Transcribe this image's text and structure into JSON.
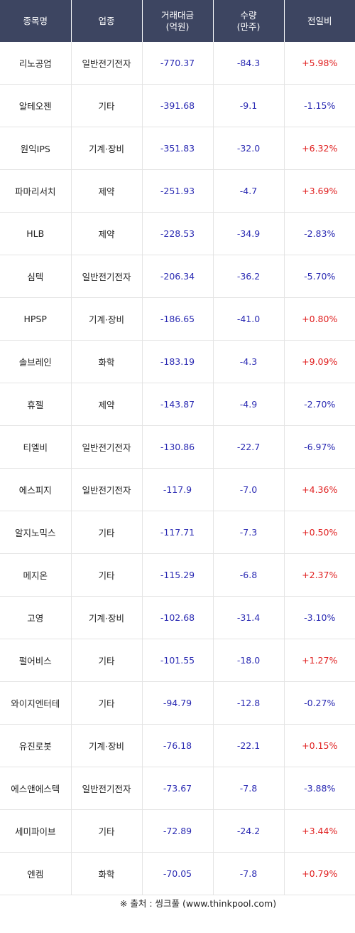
{
  "header": {
    "name": "종목명",
    "sector": "업종",
    "amount_line1": "거래대금",
    "amount_line2": "(억원)",
    "volume_line1": "수량",
    "volume_line2": "(만주)",
    "change": "전일비"
  },
  "rows": [
    {
      "name": "리노공업",
      "sector": "일반전기전자",
      "amount": "-770.37",
      "volume": "-84.3",
      "change": "+5.98%",
      "dir": "up"
    },
    {
      "name": "알테오젠",
      "sector": "기타",
      "amount": "-391.68",
      "volume": "-9.1",
      "change": "-1.15%",
      "dir": "down"
    },
    {
      "name": "원익IPS",
      "sector": "기계·장비",
      "amount": "-351.83",
      "volume": "-32.0",
      "change": "+6.32%",
      "dir": "up"
    },
    {
      "name": "파마리서치",
      "sector": "제약",
      "amount": "-251.93",
      "volume": "-4.7",
      "change": "+3.69%",
      "dir": "up"
    },
    {
      "name": "HLB",
      "sector": "제약",
      "amount": "-228.53",
      "volume": "-34.9",
      "change": "-2.83%",
      "dir": "down"
    },
    {
      "name": "심텍",
      "sector": "일반전기전자",
      "amount": "-206.34",
      "volume": "-36.2",
      "change": "-5.70%",
      "dir": "down"
    },
    {
      "name": "HPSP",
      "sector": "기계·장비",
      "amount": "-186.65",
      "volume": "-41.0",
      "change": "+0.80%",
      "dir": "up"
    },
    {
      "name": "솔브레인",
      "sector": "화학",
      "amount": "-183.19",
      "volume": "-4.3",
      "change": "+9.09%",
      "dir": "up"
    },
    {
      "name": "휴젤",
      "sector": "제약",
      "amount": "-143.87",
      "volume": "-4.9",
      "change": "-2.70%",
      "dir": "down"
    },
    {
      "name": "티엘비",
      "sector": "일반전기전자",
      "amount": "-130.86",
      "volume": "-22.7",
      "change": "-6.97%",
      "dir": "down"
    },
    {
      "name": "에스피지",
      "sector": "일반전기전자",
      "amount": "-117.9",
      "volume": "-7.0",
      "change": "+4.36%",
      "dir": "up"
    },
    {
      "name": "알지노믹스",
      "sector": "기타",
      "amount": "-117.71",
      "volume": "-7.3",
      "change": "+0.50%",
      "dir": "up"
    },
    {
      "name": "메지온",
      "sector": "기타",
      "amount": "-115.29",
      "volume": "-6.8",
      "change": "+2.37%",
      "dir": "up"
    },
    {
      "name": "고영",
      "sector": "기계·장비",
      "amount": "-102.68",
      "volume": "-31.4",
      "change": "-3.10%",
      "dir": "down"
    },
    {
      "name": "펄어비스",
      "sector": "기타",
      "amount": "-101.55",
      "volume": "-18.0",
      "change": "+1.27%",
      "dir": "up"
    },
    {
      "name": "와이지엔터테",
      "sector": "기타",
      "amount": "-94.79",
      "volume": "-12.8",
      "change": "-0.27%",
      "dir": "down"
    },
    {
      "name": "유진로봇",
      "sector": "기계·장비",
      "amount": "-76.18",
      "volume": "-22.1",
      "change": "+0.15%",
      "dir": "up"
    },
    {
      "name": "에스앤에스텍",
      "sector": "일반전기전자",
      "amount": "-73.67",
      "volume": "-7.8",
      "change": "-3.88%",
      "dir": "down"
    },
    {
      "name": "세미파이브",
      "sector": "기타",
      "amount": "-72.89",
      "volume": "-24.2",
      "change": "+3.44%",
      "dir": "up"
    },
    {
      "name": "엔켐",
      "sector": "화학",
      "amount": "-70.05",
      "volume": "-7.8",
      "change": "+0.79%",
      "dir": "up"
    }
  ],
  "colors": {
    "header_bg": "#3d4561",
    "up": "#e02020",
    "down": "#2b2bb3"
  },
  "source": "※ 출처 : 씽크풀 (www.thinkpool.com)"
}
